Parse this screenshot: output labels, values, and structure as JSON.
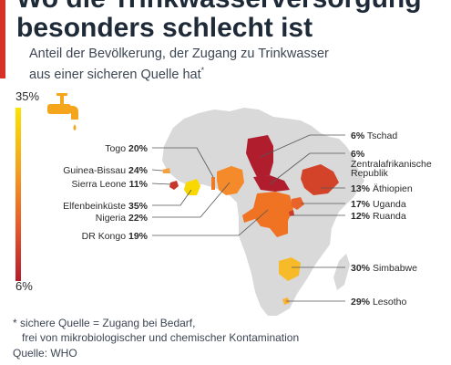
{
  "title_lines": [
    "Wo die Trinkwasserversorgung",
    "besonders schlecht ist"
  ],
  "subtitle_lines": [
    "Anteil der Bevölkerung, der Zugang zu Trinkwasser",
    "aus einer sicheren Quelle hat"
  ],
  "subtitle_mark": "*",
  "legend": {
    "max_label": "35%",
    "min_label": "6%",
    "colors": [
      "#fbe400",
      "#f6a21d",
      "#e8562a",
      "#b51c2c"
    ]
  },
  "colors": {
    "accent": "#d73027",
    "africa": "#d9d9d9",
    "tap": "#f5a51b"
  },
  "countries": [
    {
      "name": "Togo",
      "pct": "20%",
      "value": 20,
      "color": "#f07a23"
    },
    {
      "name": "Guinea-Bissau",
      "pct": "24%",
      "value": 24,
      "color": "#f5a043"
    },
    {
      "name": "Sierra Leone",
      "pct": "11%",
      "value": 11,
      "color": "#c9372c"
    },
    {
      "name": "Elfenbeinküste",
      "pct": "35%",
      "value": 35,
      "color": "#f9d800"
    },
    {
      "name": "Nigeria",
      "pct": "22%",
      "value": 22,
      "color": "#f58a2a"
    },
    {
      "name": "DR Kongo",
      "pct": "19%",
      "value": 19,
      "color": "#ef7323"
    },
    {
      "name": "Tschad",
      "pct": "6%",
      "value": 6,
      "color": "#b01e2e"
    },
    {
      "name": "Zentralafrikanische Republik",
      "name_lines": [
        "Zentralafrikanische",
        "Republik"
      ],
      "pct": "6%",
      "value": 6,
      "color": "#b01e2e"
    },
    {
      "name": "Äthiopien",
      "pct": "13%",
      "value": 13,
      "color": "#d3432a"
    },
    {
      "name": "Uganda",
      "pct": "17%",
      "value": 17,
      "color": "#e8642a"
    },
    {
      "name": "Ruanda",
      "pct": "12%",
      "value": 12,
      "color": "#cc3b2b"
    },
    {
      "name": "Simbabwe",
      "pct": "30%",
      "value": 30,
      "color": "#f7bb2a"
    },
    {
      "name": "Lesotho",
      "pct": "29%",
      "value": 29,
      "color": "#f8b233"
    }
  ],
  "footnote_lines": [
    "* sichere Quelle = Zugang bei Bedarf,",
    "frei von mikrobiologischer und chemischer Kontamination"
  ],
  "source": "Quelle: WHO"
}
